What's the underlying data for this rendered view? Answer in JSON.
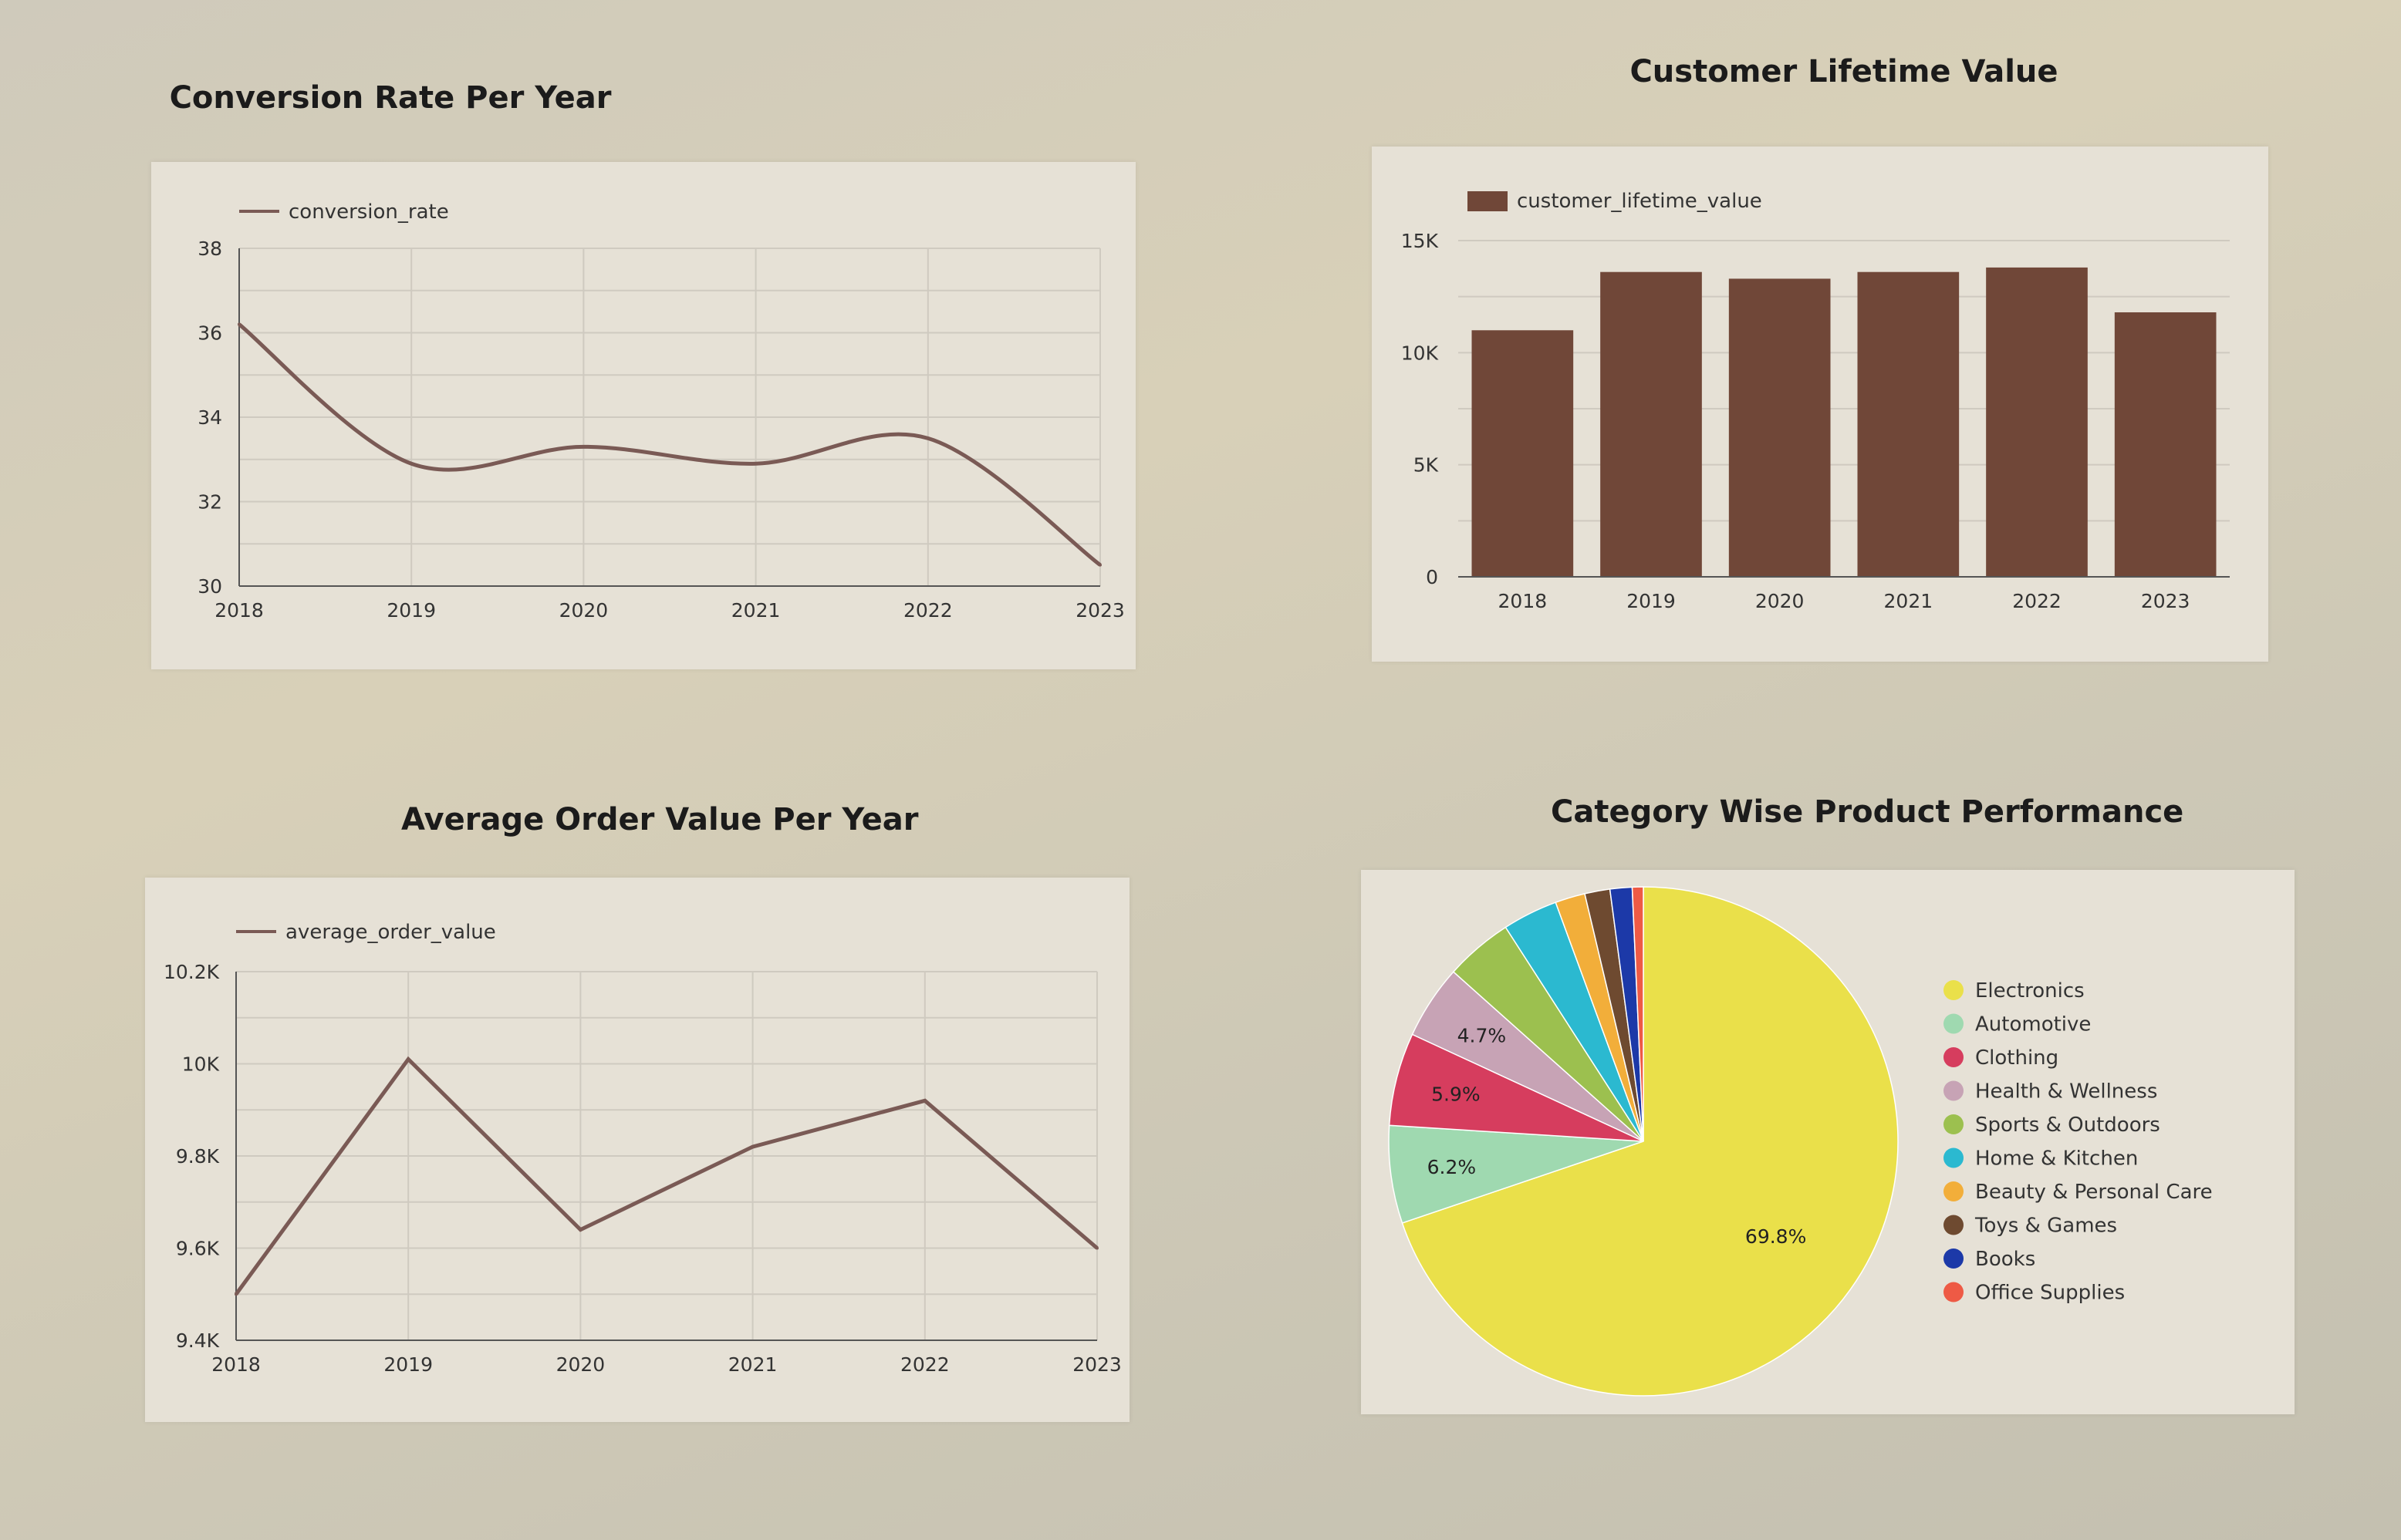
{
  "charts": {
    "conversion": {
      "title": "Conversion Rate Per Year",
      "chart_data": {
        "type": "line",
        "x": [
          "2018",
          "2019",
          "2020",
          "2021",
          "2022",
          "2023"
        ],
        "series": [
          {
            "name": "conversion_rate",
            "values": [
              36.2,
              32.9,
              33.3,
              32.9,
              33.5,
              30.5
            ]
          }
        ],
        "ylim": [
          30,
          38
        ],
        "yticks": [
          "30",
          "32",
          "34",
          "36",
          "38"
        ],
        "line_color": "#7a5a55",
        "grid": true,
        "legend": "top-left"
      }
    },
    "clv": {
      "title": "Customer Lifetime Value",
      "chart_data": {
        "type": "bar",
        "categories": [
          "2018",
          "2019",
          "2020",
          "2021",
          "2022",
          "2023"
        ],
        "series": [
          {
            "name": "customer_lifetime_value",
            "values": [
              11000,
              13600,
              13300,
              13600,
              13800,
              11800
            ]
          }
        ],
        "ylim": [
          0,
          15000
        ],
        "yticks": [
          "0",
          "5K",
          "10K",
          "15K"
        ],
        "bar_color": "#704738",
        "grid": true,
        "legend": "top-left"
      }
    },
    "aov": {
      "title": "Average Order Value Per Year",
      "chart_data": {
        "type": "line",
        "x": [
          "2018",
          "2019",
          "2020",
          "2021",
          "2022",
          "2023"
        ],
        "series": [
          {
            "name": "average_order_value",
            "values": [
              9500,
              10010,
              9640,
              9820,
              9920,
              9600
            ]
          }
        ],
        "ylim": [
          9400,
          10200
        ],
        "yticks": [
          "9.4K",
          "9.6K",
          "9.8K",
          "10K",
          "10.2K"
        ],
        "line_color": "#7a5a55",
        "grid": true,
        "legend": "top-left"
      }
    },
    "category": {
      "title": "Category Wise Product Performance",
      "chart_data": {
        "type": "pie",
        "slices": [
          {
            "name": "Electronics",
            "value": 69.8,
            "label": "69.8%",
            "color": "#eae04a"
          },
          {
            "name": "Automotive",
            "value": 6.2,
            "label": "6.2%",
            "color": "#9fd9b0"
          },
          {
            "name": "Clothing",
            "value": 5.9,
            "label": "5.9%",
            "color": "#d63d5e"
          },
          {
            "name": "Health & Wellness",
            "value": 4.7,
            "label": "4.7%",
            "color": "#c7a3b5"
          },
          {
            "name": "Sports & Outdoors",
            "value": 4.3,
            "label": "",
            "color": "#9cc04f"
          },
          {
            "name": "Home & Kitchen",
            "value": 3.5,
            "label": "",
            "color": "#2bb9d0"
          },
          {
            "name": "Beauty & Personal Care",
            "value": 1.9,
            "label": "",
            "color": "#f2ae3a"
          },
          {
            "name": "Toys & Games",
            "value": 1.6,
            "label": "",
            "color": "#6e4a30"
          },
          {
            "name": "Books",
            "value": 1.4,
            "label": "",
            "color": "#1c39a8"
          },
          {
            "name": "Office Supplies",
            "value": 0.7,
            "label": "",
            "color": "#ee5a45"
          }
        ],
        "legend": "right"
      }
    }
  }
}
